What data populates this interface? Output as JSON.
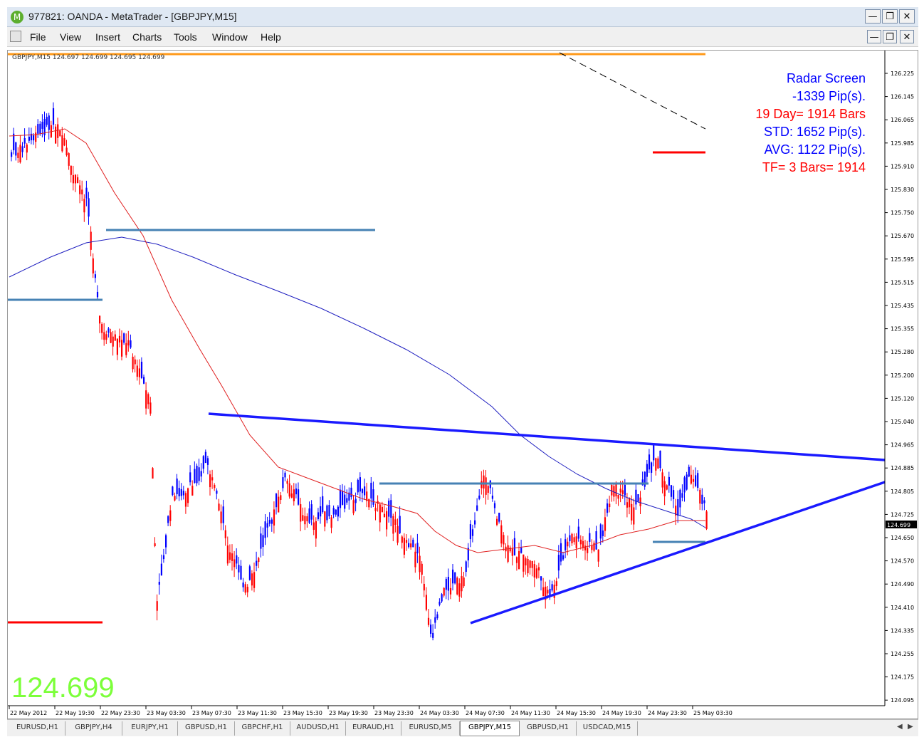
{
  "window": {
    "title": "977821: OANDA - MetaTrader - [GBPJPY,M15]",
    "icon": "metatrader-logo",
    "buttons": [
      "minimize",
      "restore",
      "close"
    ]
  },
  "menu": [
    "File",
    "View",
    "Insert",
    "Charts",
    "Tools",
    "Window",
    "Help"
  ],
  "chart": {
    "info_line": "GBPJPY,M15  124.697 124.699 124.695 124.699",
    "current_price": "124.699",
    "big_price": "124.699",
    "big_price_color": "#7cff3a",
    "price_axis": [
      "126.225",
      "126.145",
      "126.065",
      "125.985",
      "125.910",
      "125.830",
      "125.750",
      "125.670",
      "125.595",
      "125.515",
      "125.435",
      "125.355",
      "125.280",
      "125.200",
      "125.120",
      "125.040",
      "124.965",
      "124.885",
      "124.805",
      "124.725",
      "124.650",
      "124.570",
      "124.490",
      "124.410",
      "124.335",
      "124.255",
      "124.175",
      "124.095"
    ],
    "time_axis": [
      "22 May 2012",
      "22 May 19:30",
      "22 May 23:30",
      "23 May 03:30",
      "23 May 07:30",
      "23 May 11:30",
      "23 May 15:30",
      "23 May 19:30",
      "23 May 23:30",
      "24 May 03:30",
      "24 May 07:30",
      "24 May 11:30",
      "24 May 15:30",
      "24 May 19:30",
      "24 May 23:30",
      "25 May 03:30"
    ],
    "radar": [
      {
        "text": "Radar Screen",
        "color": "#0000ff"
      },
      {
        "text": "-1339 Pip(s).",
        "color": "#0000ff"
      },
      {
        "text": "19 Day= 1914 Bars",
        "color": "#ff0000"
      },
      {
        "text": "STD: 1652 Pip(s).",
        "color": "#0000ff"
      },
      {
        "text": "AVG: 1122 Pip(s).",
        "color": "#0000ff"
      },
      {
        "text": "TF= 3 Bars= 1914",
        "color": "#ff0000"
      }
    ],
    "colors": {
      "bull": "#0000ff",
      "bear": "#ff0000",
      "ma_fast": "#e02020",
      "ma_slow": "#2020c0",
      "trendline": "#1a1aff",
      "level": "#4682b4",
      "resistance": "#ff9a1a"
    }
  },
  "tabs": [
    {
      "label": "EURUSD,H1",
      "active": false
    },
    {
      "label": "GBPJPY,H4",
      "active": false
    },
    {
      "label": "EURJPY,H1",
      "active": false
    },
    {
      "label": "GBPUSD,H1",
      "active": false
    },
    {
      "label": "GBPCHF,H1",
      "active": false
    },
    {
      "label": "AUDUSD,H1",
      "active": false
    },
    {
      "label": "EURAUD,H1",
      "active": false
    },
    {
      "label": "EURUSD,M5",
      "active": false
    },
    {
      "label": "GBPJPY,M15",
      "active": true
    },
    {
      "label": "GBPUSD,H1",
      "active": false
    },
    {
      "label": "USDCAD,M15",
      "active": false
    }
  ]
}
